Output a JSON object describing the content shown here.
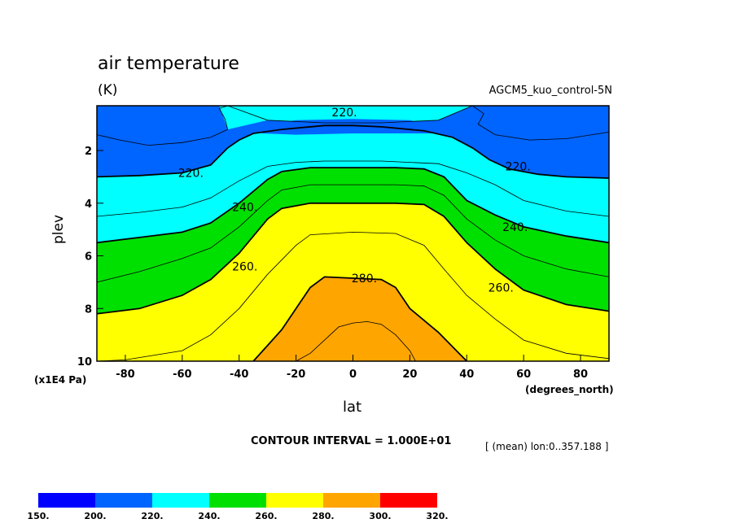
{
  "chart_data": {
    "type": "heatmap",
    "title": "air temperature",
    "units": "(K)",
    "run_label": "AGCM5_kuo_control-5N",
    "xlabel": "lat",
    "x_units": "(degrees_north)",
    "ylabel": "plev",
    "y_units": "(x1E4 Pa)",
    "xlim": [
      -90,
      90
    ],
    "ylim": [
      0.3,
      10
    ],
    "y_inverted": true,
    "x_ticks": [
      -80,
      -60,
      -40,
      -20,
      0,
      20,
      40,
      60,
      80
    ],
    "y_ticks": [
      2,
      4,
      6,
      8,
      10
    ],
    "contour_interval_text": "CONTOUR INTERVAL = 1.000E+01",
    "averaging_text": "[ (mean) lon:0..357.188 ]",
    "contour_labels": [
      "220.",
      "220.",
      "220.",
      "240.",
      "240.",
      "260.",
      "260.",
      "280."
    ],
    "contours": [
      {
        "level": 210,
        "x": [
          -90,
          -82,
          -72,
          -60,
          -50,
          -44,
          -45,
          -47,
          -44,
          -30,
          -10,
          10,
          30,
          42,
          46,
          44,
          50,
          62,
          75,
          90
        ],
        "y": [
          1.4,
          1.6,
          1.8,
          1.7,
          1.5,
          1.2,
          0.8,
          0.4,
          0.3,
          0.85,
          0.95,
          0.95,
          0.85,
          0.3,
          0.6,
          1.0,
          1.4,
          1.6,
          1.55,
          1.3
        ]
      },
      {
        "level": 220,
        "x": [
          -90,
          -75,
          -60,
          -50,
          -44,
          -40,
          -35,
          -25,
          -10,
          0,
          10,
          25,
          35,
          42,
          48,
          55,
          65,
          75,
          90
        ],
        "y": [
          3.0,
          2.95,
          2.85,
          2.55,
          1.9,
          1.6,
          1.35,
          1.2,
          1.05,
          1.05,
          1.1,
          1.25,
          1.5,
          1.9,
          2.35,
          2.7,
          2.9,
          3.0,
          3.05
        ]
      },
      {
        "level": 230,
        "x": [
          -90,
          -75,
          -60,
          -50,
          -40,
          -30,
          -20,
          -10,
          0,
          10,
          20,
          30,
          40,
          50,
          60,
          75,
          90
        ],
        "y": [
          4.5,
          4.35,
          4.15,
          3.8,
          3.15,
          2.6,
          2.45,
          2.4,
          2.4,
          2.4,
          2.45,
          2.5,
          2.85,
          3.3,
          3.9,
          4.3,
          4.5
        ]
      },
      {
        "level": 240,
        "x": [
          -90,
          -75,
          -60,
          -50,
          -40,
          -30,
          -25,
          -15,
          0,
          15,
          25,
          32,
          40,
          50,
          60,
          75,
          90
        ],
        "y": [
          5.5,
          5.3,
          5.1,
          4.75,
          4.0,
          3.1,
          2.8,
          2.65,
          2.65,
          2.65,
          2.7,
          3.0,
          3.9,
          4.45,
          4.9,
          5.25,
          5.5
        ]
      },
      {
        "level": 250,
        "x": [
          -90,
          -75,
          -60,
          -50,
          -40,
          -30,
          -25,
          -15,
          0,
          15,
          25,
          32,
          40,
          50,
          60,
          75,
          90
        ],
        "y": [
          7.0,
          6.6,
          6.1,
          5.7,
          4.9,
          3.9,
          3.5,
          3.3,
          3.3,
          3.3,
          3.35,
          3.7,
          4.6,
          5.4,
          6.0,
          6.5,
          6.8
        ]
      },
      {
        "level": 260,
        "x": [
          -90,
          -75,
          -60,
          -50,
          -40,
          -30,
          -25,
          -15,
          0,
          15,
          25,
          32,
          40,
          50,
          60,
          75,
          90
        ],
        "y": [
          8.2,
          8.0,
          7.5,
          6.9,
          5.9,
          4.6,
          4.2,
          4.0,
          4.0,
          4.0,
          4.05,
          4.5,
          5.5,
          6.5,
          7.3,
          7.85,
          8.1
        ]
      },
      {
        "level": 270,
        "x": [
          -90,
          -80,
          -60,
          -50,
          -40,
          -30,
          -20,
          -15,
          0,
          15,
          25,
          32,
          40,
          50,
          60,
          75,
          90
        ],
        "y": [
          10.0,
          9.95,
          9.6,
          9.0,
          8.0,
          6.7,
          5.6,
          5.2,
          5.1,
          5.15,
          5.6,
          6.5,
          7.5,
          8.4,
          9.2,
          9.7,
          9.9
        ]
      },
      {
        "level": 280,
        "x": [
          -35,
          -30,
          -25,
          -20,
          -15,
          -10,
          0,
          10,
          15,
          20,
          30,
          40
        ],
        "y": [
          10.0,
          9.4,
          8.8,
          8.0,
          7.2,
          6.8,
          6.85,
          6.9,
          7.2,
          8.0,
          8.9,
          10.0
        ]
      },
      {
        "level": 290,
        "x": [
          -20,
          -15,
          -10,
          -5,
          0,
          5,
          10,
          15,
          20,
          22
        ],
        "y": [
          10.0,
          9.7,
          9.2,
          8.7,
          8.55,
          8.5,
          8.6,
          9.0,
          9.6,
          10.0
        ]
      }
    ],
    "colorbar": {
      "levels": [
        "150.",
        "200.",
        "220.",
        "240.",
        "260.",
        "280.",
        "300.",
        "320."
      ],
      "colors": [
        "#0000ff",
        "#0064ff",
        "#00ffff",
        "#00e000",
        "#ffff00",
        "#ffa500",
        "#ff0000"
      ]
    }
  }
}
